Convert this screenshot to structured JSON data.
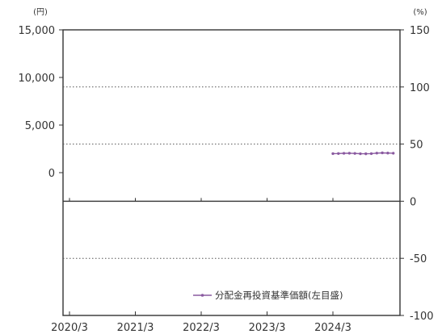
{
  "chart_data": {
    "type": "line",
    "left_unit": "(円)",
    "right_unit": "(%)",
    "x_tick_labels": [
      "2020/3",
      "2021/3",
      "2022/3",
      "2023/3",
      "2024/3"
    ],
    "y_left": {
      "ticks": [
        0,
        5000,
        10000,
        15000
      ],
      "tick_labels": [
        "0",
        "5,000",
        "10,000",
        "15,000"
      ],
      "range": [
        -15000,
        15000
      ]
    },
    "y_right": {
      "ticks": [
        150,
        100,
        50,
        0,
        -50,
        -100
      ],
      "tick_labels": [
        "150",
        "100",
        "50",
        "0",
        "-50",
        "-100"
      ],
      "range": [
        -100,
        150
      ]
    },
    "grid": true,
    "legend_position": "bottom-right",
    "series": [
      {
        "name": "分配金再投資基準価額(左目盛)",
        "color": "#8a5aa0",
        "axis": "left",
        "points": [
          {
            "x": "2024/3",
            "y": 2000
          },
          {
            "x": "2024/4",
            "y": 2010
          },
          {
            "x": "2024/5",
            "y": 2030
          },
          {
            "x": "2024/6",
            "y": 2040
          },
          {
            "x": "2024/7",
            "y": 2020
          },
          {
            "x": "2024/8",
            "y": 1990
          },
          {
            "x": "2024/9",
            "y": 1980
          },
          {
            "x": "2024/10",
            "y": 2000
          },
          {
            "x": "2024/11",
            "y": 2050
          },
          {
            "x": "2024/12",
            "y": 2080
          },
          {
            "x": "2025/1",
            "y": 2060
          },
          {
            "x": "2025/2",
            "y": 2040
          }
        ]
      }
    ]
  }
}
